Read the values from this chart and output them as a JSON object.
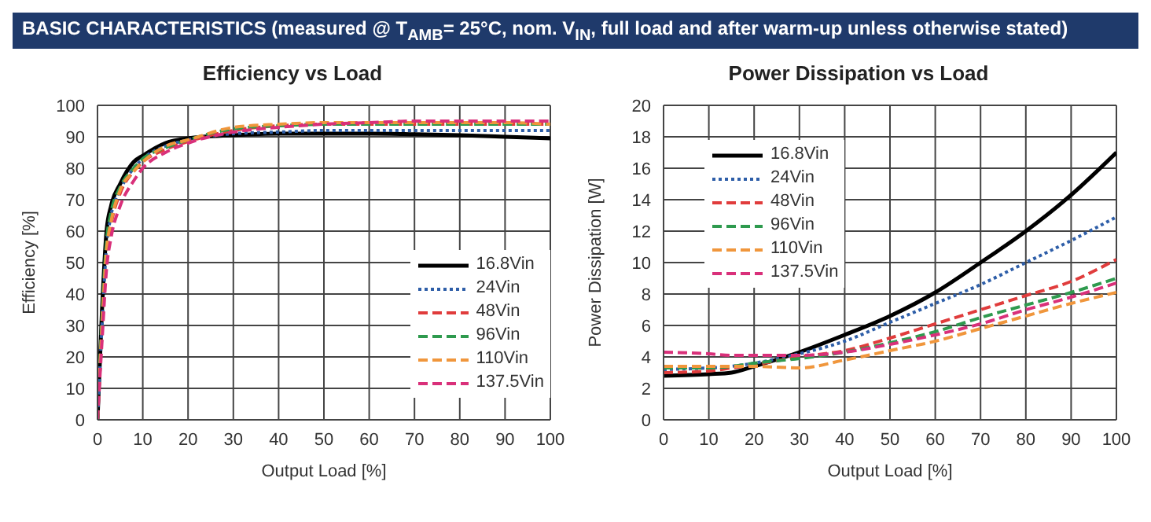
{
  "chart_data": [
    {
      "type": "line",
      "title": "Efficiency vs Load",
      "annotations": [
        "BASIC CHARACTERISTICS (measured @ T$_{AMB}$= 25°C, nom. V$_{IN}$, full load and after warm-up unless otherwise stated)"
      ],
      "xlabel": "Output Load [%]",
      "ylabel": "Efficiency [%]",
      "x": [
        0,
        1,
        2,
        3,
        5,
        8,
        10,
        15,
        20,
        30,
        40,
        50,
        60,
        70,
        80,
        90,
        100
      ],
      "xlim": [
        0,
        100
      ],
      "xticks": [
        0,
        10,
        20,
        30,
        40,
        50,
        60,
        70,
        80,
        90,
        100
      ],
      "ylim": [
        0,
        100
      ],
      "yticks": [
        0,
        10,
        20,
        30,
        40,
        50,
        60,
        70,
        80,
        90,
        100
      ],
      "grid": true,
      "legend": "bottom right",
      "marker": "none",
      "series": [
        {
          "name": "16.8Vin",
          "color": "#000000",
          "line_style": "solid",
          "values": [
            0,
            35,
            60,
            68,
            75,
            82,
            84,
            88,
            89.5,
            90.5,
            91,
            91,
            91,
            90.8,
            90.5,
            90,
            89.5
          ]
        },
        {
          "name": "24Vin",
          "color": "#2e5ea8",
          "line_style": "dotted",
          "values": [
            0,
            30,
            55,
            65,
            73,
            80,
            83,
            87,
            89,
            91,
            91.5,
            92,
            92,
            92,
            92,
            92,
            92
          ]
        },
        {
          "name": "48Vin",
          "color": "#e03c3c",
          "line_style": "dashed",
          "values": [
            0,
            28,
            52,
            62,
            72,
            79,
            82,
            86,
            88.5,
            92,
            93.5,
            94,
            94,
            94,
            94,
            94,
            94
          ]
        },
        {
          "name": "96Vin",
          "color": "#2e9a4e",
          "line_style": "dashed",
          "values": [
            0,
            33,
            57,
            66,
            74,
            80,
            83,
            86.5,
            89,
            92.5,
            93.5,
            94,
            94,
            94,
            94,
            94,
            94
          ]
        },
        {
          "name": "110Vin",
          "color": "#f0963c",
          "line_style": "dashed",
          "values": [
            0,
            30,
            54,
            63,
            73,
            79,
            82,
            87,
            89,
            93,
            94,
            94.5,
            94.5,
            94.5,
            94.5,
            94.5,
            94
          ]
        },
        {
          "name": "137.5Vin",
          "color": "#d9307a",
          "line_style": "dashed",
          "values": [
            0,
            25,
            48,
            58,
            68,
            76,
            80,
            85,
            88,
            91.5,
            93,
            94,
            94.5,
            95,
            95,
            95,
            95
          ]
        }
      ]
    },
    {
      "type": "line",
      "title": "Power Dissipation vs Load",
      "xlabel": "Output Load [%]",
      "ylabel": "Power Dissipation [W]",
      "x": [
        0,
        10,
        15,
        20,
        30,
        40,
        50,
        60,
        70,
        80,
        90,
        100
      ],
      "xlim": [
        0,
        100
      ],
      "xticks": [
        0,
        10,
        20,
        30,
        40,
        50,
        60,
        70,
        80,
        90,
        100
      ],
      "ylim": [
        0,
        20
      ],
      "yticks": [
        0,
        2,
        4,
        6,
        8,
        10,
        12,
        14,
        16,
        18,
        20
      ],
      "grid": true,
      "legend": "top left",
      "marker": "none",
      "series": [
        {
          "name": "16.8Vin",
          "color": "#000000",
          "line_style": "solid",
          "values": [
            2.8,
            2.9,
            3.0,
            3.4,
            4.3,
            5.4,
            6.6,
            8.1,
            10,
            12,
            14.3,
            17
          ]
        },
        {
          "name": "24Vin",
          "color": "#2e5ea8",
          "line_style": "dotted",
          "values": [
            3.2,
            3.3,
            3.4,
            3.6,
            4.2,
            5.0,
            6.2,
            7.4,
            8.6,
            10,
            11.4,
            12.9
          ]
        },
        {
          "name": "48Vin",
          "color": "#e03c3c",
          "line_style": "dashed",
          "values": [
            3.0,
            3.1,
            3.3,
            3.5,
            4.0,
            4.4,
            5.2,
            6.1,
            7.0,
            7.9,
            8.8,
            10.2
          ]
        },
        {
          "name": "96Vin",
          "color": "#2e9a4e",
          "line_style": "dashed",
          "values": [
            3.3,
            3.3,
            3.4,
            3.6,
            3.9,
            4.3,
            4.9,
            5.6,
            6.5,
            7.3,
            8.1,
            9.0
          ]
        },
        {
          "name": "110Vin",
          "color": "#f0963c",
          "line_style": "dashed",
          "values": [
            3.4,
            3.4,
            3.4,
            3.4,
            3.3,
            3.8,
            4.4,
            5.0,
            5.8,
            6.6,
            7.4,
            8.1
          ]
        },
        {
          "name": "137.5Vin",
          "color": "#d9307a",
          "line_style": "dashed",
          "values": [
            4.3,
            4.2,
            4.1,
            4.1,
            4.1,
            4.3,
            4.8,
            5.4,
            6.1,
            7.0,
            7.8,
            8.7
          ]
        }
      ]
    }
  ]
}
